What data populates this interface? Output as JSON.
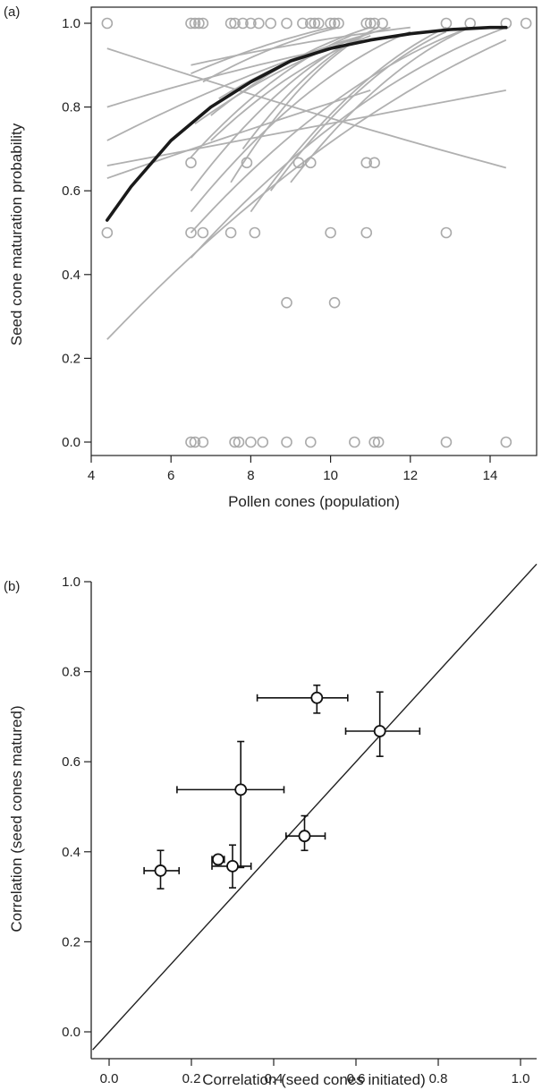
{
  "chart_data": [
    {
      "panel_label": "(a)",
      "type": "scatter",
      "xlabel": "Pollen cones (population)",
      "ylabel": "Seed cone maturation probability",
      "xlim": [
        4,
        15
      ],
      "ylim": [
        0,
        1.0
      ],
      "xticks": [
        "4",
        "6",
        "8",
        "10",
        "12",
        "14"
      ],
      "yticks": [
        "0.0",
        "0.2",
        "0.4",
        "0.6",
        "0.8",
        "1.0"
      ],
      "grid": false,
      "colors": {
        "points": "#aaaaaa",
        "fits": "#b0b0b0",
        "overall_fit": "#1a1a1a"
      },
      "series": [
        {
          "type": "scatter",
          "x": [
            4.4,
            6.5,
            6.6,
            6.7,
            6.8,
            7.5,
            7.6,
            7.8,
            8.0,
            8.2,
            8.5,
            8.9,
            9.3,
            9.5,
            9.6,
            9.7,
            10.0,
            10.1,
            10.2,
            10.9,
            11.0,
            11.1,
            11.3,
            12.9,
            13.5,
            14.4,
            14.9,
            6.5,
            7.9,
            9.2,
            9.5,
            10.9,
            11.1,
            4.4,
            6.5,
            6.8,
            7.5,
            8.1,
            10.0,
            10.9,
            12.9,
            8.9,
            10.1,
            6.5,
            6.6,
            6.8,
            7.6,
            7.7,
            8.0,
            8.3,
            8.9,
            9.5,
            10.6,
            11.1,
            11.2,
            12.9,
            14.4
          ],
          "y": [
            1.0,
            1.0,
            1.0,
            1.0,
            1.0,
            1.0,
            1.0,
            1.0,
            1.0,
            1.0,
            1.0,
            1.0,
            1.0,
            1.0,
            1.0,
            1.0,
            1.0,
            1.0,
            1.0,
            1.0,
            1.0,
            1.0,
            1.0,
            1.0,
            1.0,
            1.0,
            1.0,
            0.667,
            0.667,
            0.667,
            0.667,
            0.667,
            0.667,
            0.5,
            0.5,
            0.5,
            0.5,
            0.5,
            0.5,
            0.5,
            0.5,
            0.333,
            0.333,
            0.0,
            0.0,
            0.0,
            0.0,
            0.0,
            0.0,
            0.0,
            0.0,
            0.0,
            0.0,
            0.0,
            0.0,
            0.0,
            0.0
          ]
        },
        {
          "type": "line",
          "role": "overall-fit",
          "x": [
            4.4,
            5.0,
            6.0,
            7.0,
            8.0,
            9.0,
            10.0,
            11.0,
            12.0,
            13.0,
            14.0,
            14.4
          ],
          "y": [
            0.53,
            0.61,
            0.72,
            0.8,
            0.86,
            0.91,
            0.94,
            0.96,
            0.975,
            0.985,
            0.99,
            0.99
          ]
        },
        {
          "type": "line",
          "role": "group-fit",
          "x": [
            4.4,
            14.4
          ],
          "y": [
            0.245,
            0.96
          ],
          "curve": 0.4
        },
        {
          "type": "line",
          "role": "group-fit",
          "x": [
            4.4,
            14.4
          ],
          "y": [
            0.66,
            0.84
          ],
          "curve": 0.0
        },
        {
          "type": "line",
          "role": "group-fit",
          "x": [
            4.4,
            14.4
          ],
          "y": [
            0.94,
            0.655
          ],
          "curve": 0.1
        },
        {
          "type": "line",
          "role": "group-fit",
          "x": [
            4.4,
            9.8
          ],
          "y": [
            0.72,
            0.94
          ],
          "curve": 0.2
        },
        {
          "type": "line",
          "role": "group-fit",
          "x": [
            4.4,
            11.0
          ],
          "y": [
            0.63,
            0.84
          ],
          "curve": 0.05
        },
        {
          "type": "line",
          "role": "group-fit",
          "x": [
            4.4,
            10.5
          ],
          "y": [
            0.8,
            0.95
          ],
          "curve": 0.2
        },
        {
          "type": "line",
          "role": "group-fit",
          "x": [
            6.5,
            14.4
          ],
          "y": [
            0.44,
            0.99
          ],
          "curve": 0.5
        },
        {
          "type": "line",
          "role": "group-fit",
          "x": [
            6.5,
            13.5
          ],
          "y": [
            0.5,
            0.99
          ],
          "curve": 0.5
        },
        {
          "type": "line",
          "role": "group-fit",
          "x": [
            6.5,
            12.0
          ],
          "y": [
            0.55,
            0.98
          ],
          "curve": 0.5
        },
        {
          "type": "line",
          "role": "group-fit",
          "x": [
            6.5,
            11.0
          ],
          "y": [
            0.6,
            0.98
          ],
          "curve": 0.5
        },
        {
          "type": "line",
          "role": "group-fit",
          "x": [
            6.5,
            10.5
          ],
          "y": [
            0.68,
            0.97
          ],
          "curve": 0.45
        },
        {
          "type": "line",
          "role": "group-fit",
          "x": [
            7.0,
            11.0
          ],
          "y": [
            0.78,
            0.99
          ],
          "curve": 0.45
        },
        {
          "type": "line",
          "role": "group-fit",
          "x": [
            7.5,
            11.0
          ],
          "y": [
            0.62,
            0.98
          ],
          "curve": 0.5
        },
        {
          "type": "line",
          "role": "group-fit",
          "x": [
            7.8,
            11.2
          ],
          "y": [
            0.7,
            0.99
          ],
          "curve": 0.5
        },
        {
          "type": "line",
          "role": "group-fit",
          "x": [
            8.0,
            12.9
          ],
          "y": [
            0.55,
            0.99
          ],
          "curve": 0.5
        },
        {
          "type": "line",
          "role": "group-fit",
          "x": [
            8.5,
            12.9
          ],
          "y": [
            0.6,
            0.98
          ],
          "curve": 0.5
        },
        {
          "type": "line",
          "role": "group-fit",
          "x": [
            9.0,
            13.5
          ],
          "y": [
            0.62,
            0.99
          ],
          "curve": 0.5
        },
        {
          "type": "line",
          "role": "group-fit",
          "x": [
            6.8,
            10.2
          ],
          "y": [
            0.86,
            0.99
          ],
          "curve": 0.4
        },
        {
          "type": "line",
          "role": "group-fit",
          "x": [
            6.5,
            10.0
          ],
          "y": [
            0.88,
            0.99
          ],
          "curve": 0.3
        },
        {
          "type": "line",
          "role": "group-fit",
          "x": [
            6.5,
            12.0
          ],
          "y": [
            0.9,
            0.99
          ],
          "curve": 0.3
        },
        {
          "type": "line",
          "role": "group-fit",
          "x": [
            7.2,
            10.8
          ],
          "y": [
            0.82,
            0.97
          ],
          "curve": 0.4
        },
        {
          "type": "line",
          "role": "group-fit",
          "x": [
            6.6,
            11.5
          ],
          "y": [
            0.76,
            0.99
          ],
          "curve": 0.45
        },
        {
          "type": "line",
          "role": "group-fit",
          "x": [
            7.0,
            11.0
          ],
          "y": [
            0.72,
            0.97
          ],
          "curve": 0.45
        }
      ]
    },
    {
      "panel_label": "(b)",
      "type": "scatter",
      "xlabel": "Correlation (seed cones initiated)",
      "ylabel": "Correlation (seed cones matured)",
      "xlim": [
        -0.04,
        1.04
      ],
      "ylim": [
        -0.04,
        1.04
      ],
      "xticks": [
        "0.0",
        "0.2",
        "0.4",
        "0.6",
        "0.8",
        "1.0"
      ],
      "yticks": [
        "0.0",
        "0.2",
        "0.4",
        "0.6",
        "0.8",
        "1.0"
      ],
      "grid": false,
      "reference_line": "y = x",
      "colors": {
        "points": "#111111",
        "errorbars": "#111111"
      },
      "points": [
        {
          "x": 0.125,
          "y": 0.358,
          "xerr": [
            0.085,
            0.17
          ],
          "yerr": [
            0.318,
            0.403
          ]
        },
        {
          "x": 0.265,
          "y": 0.383,
          "xerr": [
            0.25,
            0.28
          ],
          "yerr": [
            0.372,
            0.39
          ]
        },
        {
          "x": 0.3,
          "y": 0.368,
          "xerr": [
            0.25,
            0.345
          ],
          "yerr": [
            0.32,
            0.415
          ]
        },
        {
          "x": 0.32,
          "y": 0.538,
          "xerr": [
            0.165,
            0.425
          ],
          "yerr": [
            0.365,
            0.645
          ]
        },
        {
          "x": 0.475,
          "y": 0.435,
          "xerr": [
            0.43,
            0.525
          ],
          "yerr": [
            0.403,
            0.48
          ]
        },
        {
          "x": 0.505,
          "y": 0.742,
          "xerr": [
            0.36,
            0.58
          ],
          "yerr": [
            0.708,
            0.77
          ]
        },
        {
          "x": 0.658,
          "y": 0.668,
          "xerr": [
            0.575,
            0.755
          ],
          "yerr": [
            0.612,
            0.755
          ]
        }
      ]
    }
  ]
}
